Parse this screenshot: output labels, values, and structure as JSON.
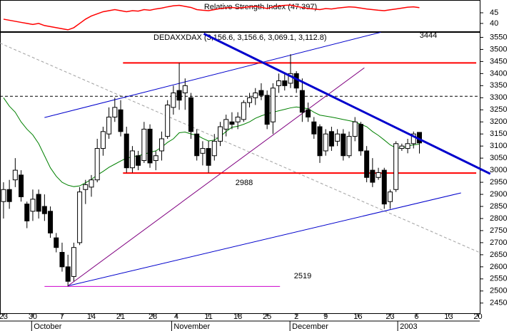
{
  "chart_data": [
    {
      "type": "line",
      "title": "Relative Strength Index (47.397)",
      "color": "#ff0000",
      "x": [
        0,
        1,
        2,
        3,
        4,
        5,
        6,
        7,
        8,
        9,
        10,
        11,
        12,
        13,
        14,
        15,
        16,
        17,
        18,
        19,
        20,
        21,
        22,
        23,
        24,
        25,
        26,
        27,
        28,
        29,
        30,
        31,
        32,
        33,
        34,
        35,
        36,
        37,
        38,
        39,
        40,
        41,
        42,
        43,
        44,
        45,
        46,
        47,
        48,
        49,
        50,
        51,
        52,
        53,
        54,
        55,
        56,
        57,
        58,
        59,
        60,
        61,
        62,
        63,
        64,
        65,
        66,
        67,
        68,
        69,
        70,
        71
      ],
      "values": [
        42,
        41.5,
        41,
        40.5,
        40,
        39.5,
        40,
        39,
        38.5,
        38,
        37.5,
        37,
        38,
        40,
        42,
        43.5,
        44.5,
        45.5,
        46,
        46.5,
        46,
        45.5,
        46,
        45.8,
        46.5,
        46.2,
        46.8,
        47.2,
        47.8,
        48.3,
        48.5,
        48,
        47.5,
        46.5,
        46.2,
        46,
        46.5,
        47,
        47.3,
        47.5,
        47.2,
        47.5,
        47.8,
        48,
        47.6,
        47,
        47.8,
        48.2,
        48.5,
        48.6,
        48,
        47.5,
        47,
        46.8,
        46.5,
        47,
        46.8,
        47.2,
        47.5,
        47.8,
        47.6,
        47.2,
        46.8,
        46.5,
        46.2,
        46,
        46.4,
        46.8,
        47.2,
        47.6,
        47.8,
        47.4
      ],
      "xlim": [
        -0.6,
        81.3
      ],
      "ylim": [
        36.3,
        51
      ],
      "yticks": [
        40,
        45
      ]
    },
    {
      "type": "candlestick",
      "title": "DEDAXXDAX (3,156.6, 3,156.6, 3,069.1, 3,112.8)",
      "x": [
        0,
        1,
        2,
        3,
        4,
        5,
        6,
        7,
        8,
        9,
        10,
        11,
        12,
        13,
        14,
        15,
        16,
        17,
        18,
        19,
        20,
        21,
        22,
        23,
        24,
        25,
        26,
        27,
        28,
        29,
        30,
        31,
        32,
        33,
        34,
        35,
        36,
        37,
        38,
        39,
        40,
        41,
        42,
        43,
        44,
        45,
        46,
        47,
        48,
        49,
        50,
        51,
        52,
        53,
        54,
        55,
        56,
        57,
        58,
        59,
        60,
        61,
        62,
        63,
        64,
        65,
        66,
        67,
        68,
        69,
        70,
        71
      ],
      "open": [
        2870,
        2920,
        2960,
        2980,
        2860,
        2830,
        2900,
        2850,
        2830,
        2720,
        2660,
        2600,
        2560,
        2700,
        2920,
        2930,
        2960,
        3090,
        3150,
        3220,
        3250,
        3150,
        3010,
        3060,
        3040,
        3170,
        3040,
        3080,
        3140,
        3260,
        3330,
        3320,
        3300,
        3150,
        3070,
        3090,
        3060,
        3120,
        3170,
        3200,
        3200,
        3210,
        3280,
        3300,
        3330,
        3310,
        3200,
        3350,
        3370,
        3360,
        3400,
        3330,
        3250,
        3200,
        3180,
        3080,
        3160,
        3120,
        3150,
        3060,
        3140,
        3190,
        3080,
        3000,
        2970,
        3000,
        2870,
        2920,
        3090,
        3090,
        3110,
        3156.6
      ],
      "high": [
        2950,
        2960,
        3050,
        3000,
        2870,
        2920,
        2920,
        2900,
        2850,
        2740,
        2700,
        2650,
        2700,
        2930,
        2960,
        2980,
        3130,
        3180,
        3260,
        3300,
        3290,
        3180,
        3100,
        3080,
        3200,
        3190,
        3080,
        3160,
        3290,
        3350,
        3444,
        3380,
        3320,
        3170,
        3120,
        3120,
        3150,
        3200,
        3230,
        3240,
        3240,
        3290,
        3320,
        3340,
        3360,
        3330,
        3360,
        3400,
        3400,
        3480,
        3410,
        3380,
        3280,
        3220,
        3190,
        3170,
        3180,
        3170,
        3170,
        3160,
        3220,
        3200,
        3100,
        3050,
        3010,
        3010,
        2920,
        3120,
        3110,
        3130,
        3160,
        3156.6
      ],
      "low": [
        2800,
        2840,
        2930,
        2870,
        2760,
        2790,
        2800,
        2790,
        2720,
        2660,
        2580,
        2519,
        2540,
        2690,
        2860,
        2890,
        2950,
        3060,
        3130,
        3200,
        3140,
        2990,
        2990,
        3000,
        3030,
        3010,
        3000,
        3040,
        3130,
        3230,
        3250,
        3250,
        3130,
        3040,
        3020,
        2990,
        3040,
        3100,
        3140,
        3170,
        3170,
        3200,
        3260,
        3270,
        3290,
        3170,
        3150,
        3320,
        3330,
        3340,
        3320,
        3200,
        3200,
        3130,
        3030,
        3060,
        3080,
        3100,
        3040,
        3050,
        3120,
        3060,
        2950,
        2930,
        2960,
        2840,
        2840,
        2910,
        3080,
        3070,
        3090,
        3069.1
      ],
      "close": [
        2920,
        2870,
        3000,
        2890,
        2790,
        2880,
        2830,
        2820,
        2740,
        2680,
        2600,
        2540,
        2680,
        2910,
        2940,
        2960,
        3090,
        3160,
        3220,
        3260,
        3160,
        3010,
        3080,
        3020,
        3170,
        3030,
        3060,
        3130,
        3270,
        3320,
        3290,
        3350,
        3160,
        3060,
        3090,
        3020,
        3120,
        3180,
        3210,
        3190,
        3220,
        3280,
        3300,
        3320,
        3310,
        3190,
        3340,
        3370,
        3350,
        3400,
        3340,
        3240,
        3220,
        3150,
        3060,
        3150,
        3100,
        3150,
        3060,
        3140,
        3200,
        3080,
        2970,
        2950,
        2990,
        2860,
        2910,
        3110,
        3100,
        3110,
        3150,
        3112.8
      ],
      "up_color": "#ffffff",
      "down_color": "#000000",
      "moving_average": {
        "color": "#008000",
        "values": [
          3300,
          3265,
          3240,
          3200,
          3170,
          3146,
          3110,
          3060,
          3010,
          2975,
          2950,
          2938,
          2932,
          2935,
          2948,
          2962,
          2980,
          2995,
          3012,
          3025,
          3038,
          3050,
          3055,
          3060,
          3066,
          3074,
          3080,
          3095,
          3115,
          3130,
          3155,
          3158,
          3150,
          3145,
          3132,
          3121,
          3125,
          3140,
          3160,
          3178,
          3182,
          3190,
          3200,
          3215,
          3225,
          3233,
          3240,
          3246,
          3252,
          3258,
          3262,
          3258,
          3255,
          3240,
          3228,
          3224,
          3220,
          3215,
          3210,
          3205,
          3200,
          3190,
          3180,
          3160,
          3144,
          3125,
          3105,
          3092,
          3091,
          3100,
          3105,
          3108
        ]
      },
      "xlim": [
        -0.6,
        81.3
      ],
      "ylim": [
        2408,
        3572
      ],
      "yticks": [
        2450,
        2500,
        2550,
        2600,
        2650,
        2700,
        2750,
        2800,
        2850,
        2900,
        2950,
        3000,
        3050,
        3100,
        3150,
        3200,
        3250,
        3300,
        3350,
        3400,
        3450,
        3500,
        3550
      ],
      "xticks": [
        {
          "value": 0,
          "label": "23"
        },
        {
          "value": 5,
          "label": "30"
        },
        {
          "value": 10,
          "label": "7"
        },
        {
          "value": 15,
          "label": "14"
        },
        {
          "value": 20,
          "label": "21"
        },
        {
          "value": 25.5,
          "label": "28"
        },
        {
          "value": 29.5,
          "label": "4"
        },
        {
          "value": 35,
          "label": "11"
        },
        {
          "value": 40,
          "label": "18"
        },
        {
          "value": 45,
          "label": "25"
        },
        {
          "value": 50,
          "label": "2"
        },
        {
          "value": 55,
          "label": "9"
        },
        {
          "value": 60.5,
          "label": "16"
        },
        {
          "value": 66,
          "label": "23"
        },
        {
          "value": 70.5,
          "label": "6"
        },
        {
          "value": 76,
          "label": "13"
        },
        {
          "value": 81,
          "label": "20"
        }
      ],
      "months": [
        {
          "value": 4.8,
          "label": "October"
        },
        {
          "value": 28.7,
          "label": "November"
        },
        {
          "value": 48.9,
          "label": "December"
        },
        {
          "value": 67.3,
          "label": "2003"
        }
      ],
      "lines": [
        {
          "color": "#a0a0a0",
          "style": "dashed",
          "x": [
            -0.6,
            81.3
          ],
          "y": [
            3526,
            2659
          ]
        },
        {
          "color": "#000000",
          "style": "dashed",
          "x": [
            -0.6,
            81.3
          ],
          "y": [
            3306,
            3306
          ]
        },
        {
          "color": "#0000cc",
          "style": "thin",
          "x": [
            7.0,
            64.4
          ],
          "y": [
            3218,
            3571
          ]
        },
        {
          "color": "#0000cc",
          "style": "thin",
          "x": [
            11.0,
            78.1
          ],
          "y": [
            2521,
            2906
          ]
        },
        {
          "color": "#800080",
          "style": "thin",
          "x": [
            11.0,
            61.6
          ],
          "y": [
            2521,
            3424
          ]
        },
        {
          "color": "#0000cc",
          "style": "thick",
          "x": [
            34.2,
            83.1
          ],
          "y": [
            3565,
            2985
          ]
        }
      ],
      "levels": [
        {
          "value": 3444,
          "color": "#ff0000",
          "x": [
            20.4,
            80.7
          ]
        },
        {
          "value": 2988,
          "color": "#ff0000",
          "x": [
            20.4,
            80.7
          ]
        },
        {
          "value": 2519,
          "color": "#cc00cc",
          "x": [
            7.0,
            47.2
          ]
        }
      ]
    }
  ]
}
